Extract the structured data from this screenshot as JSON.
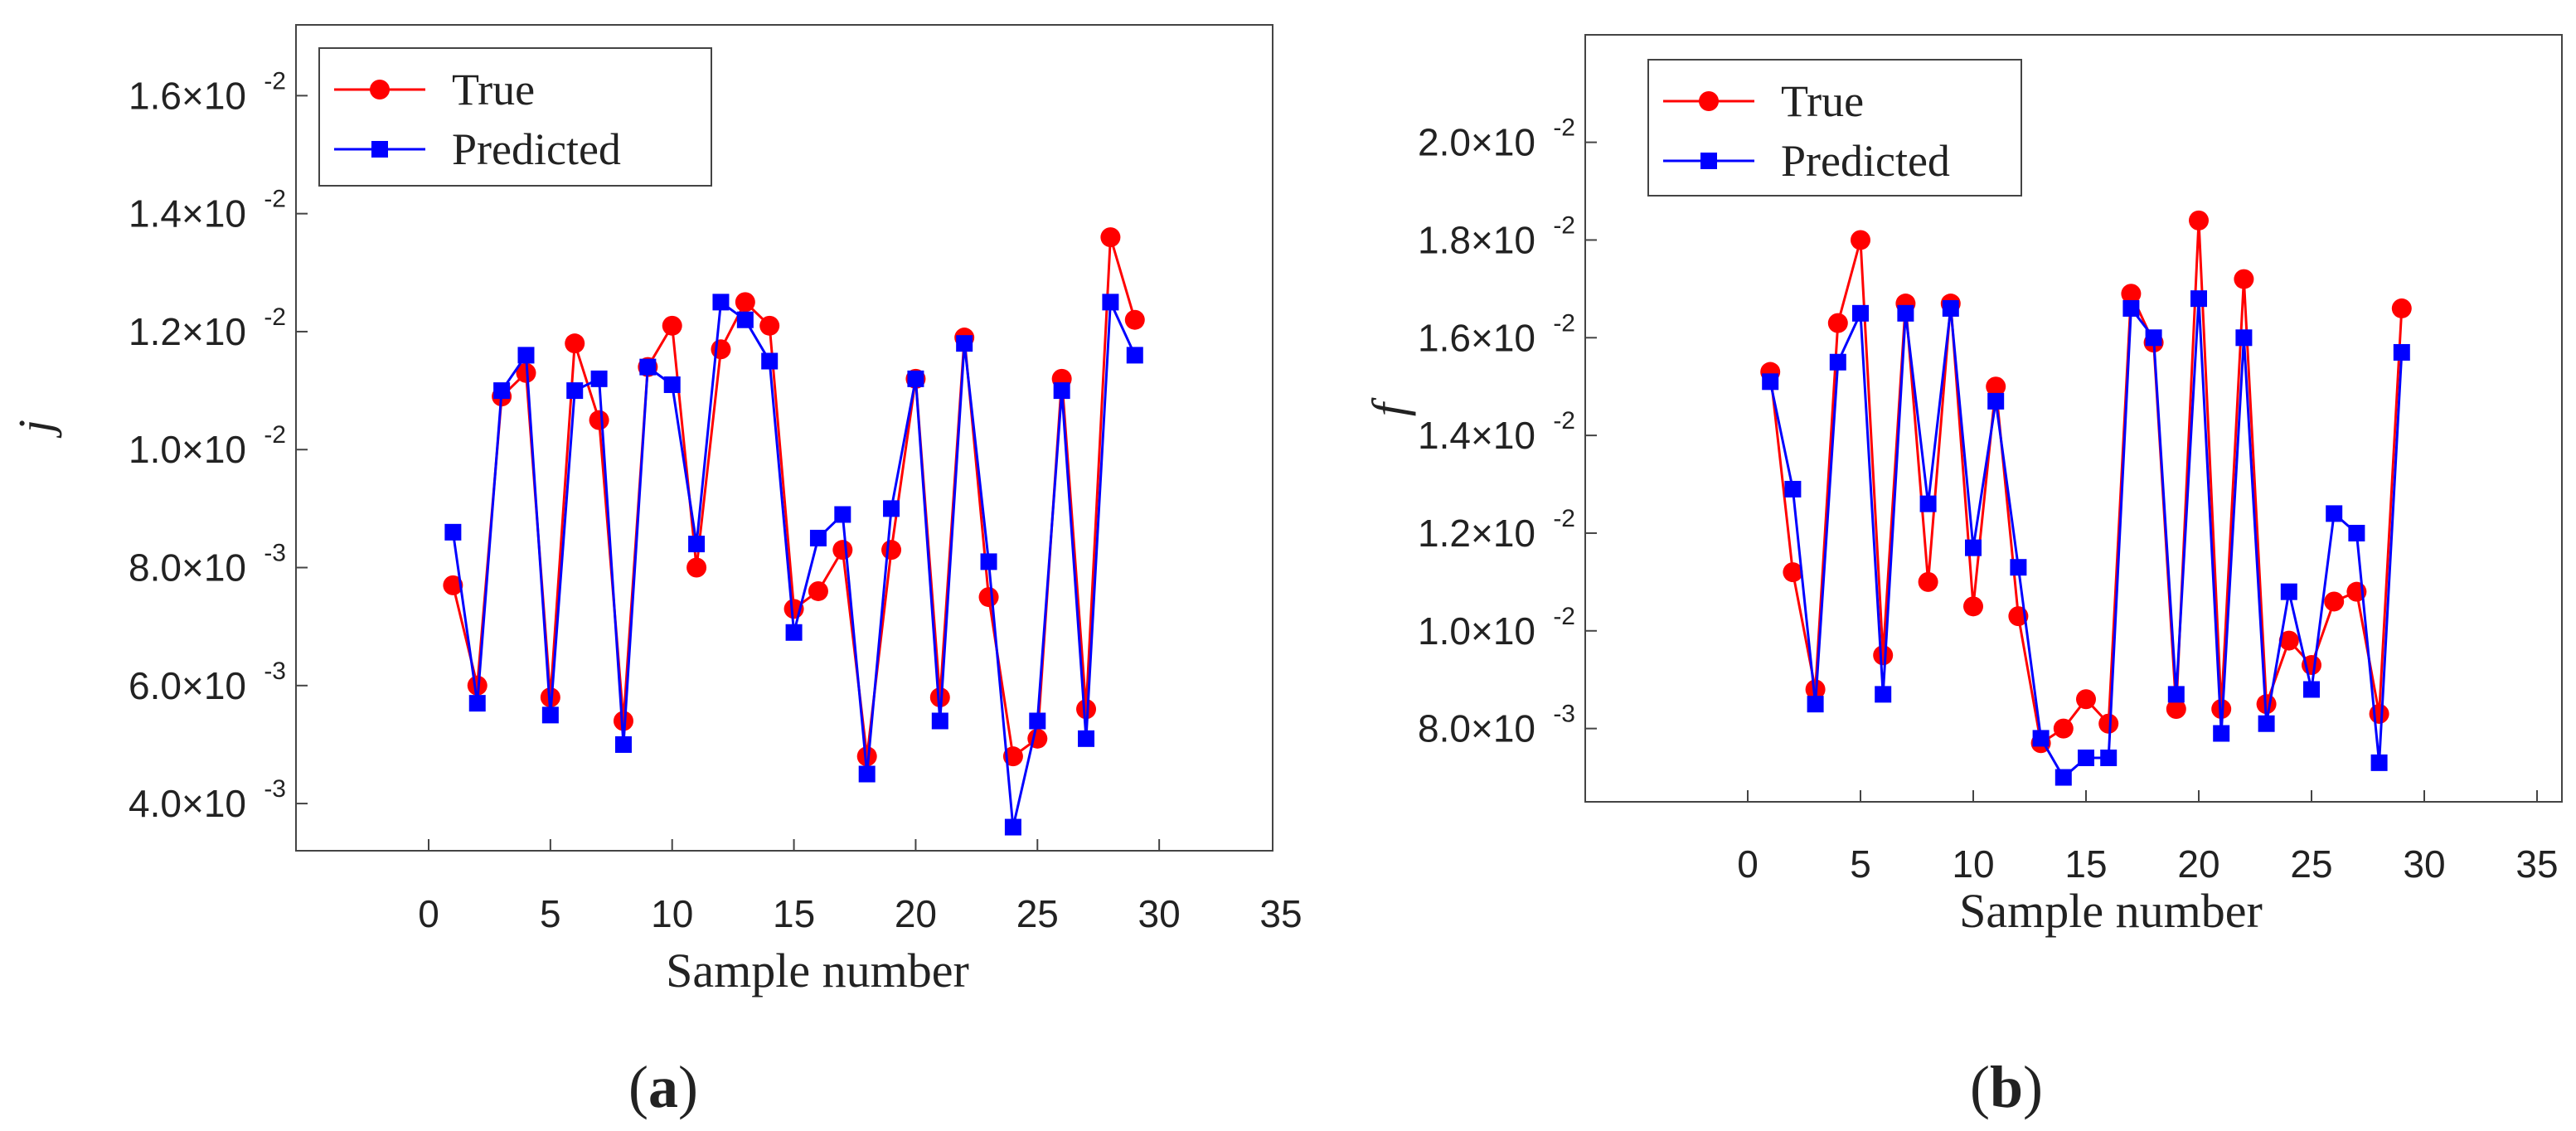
{
  "charts": [
    {
      "id": "a",
      "panel_label_open": "(",
      "panel_label_letter": "a",
      "panel_label_close": ")",
      "ylabel": "j",
      "xlabel": "Sample number",
      "legend": [
        "True",
        "Predicted"
      ],
      "ytick_labels": [
        {
          "value": 0.004,
          "mant": "4.0×10",
          "exp": "-3"
        },
        {
          "value": 0.006,
          "mant": "6.0×10",
          "exp": "-3"
        },
        {
          "value": 0.008,
          "mant": "8.0×10",
          "exp": "-3"
        },
        {
          "value": 0.01,
          "mant": "1.0×10",
          "exp": "-2"
        },
        {
          "value": 0.012,
          "mant": "1.2×10",
          "exp": "-2"
        },
        {
          "value": 0.014,
          "mant": "1.4×10",
          "exp": "-2"
        },
        {
          "value": 0.016,
          "mant": "1.6×10",
          "exp": "-2"
        }
      ],
      "xticks": [
        "0",
        "5",
        "10",
        "15",
        "20",
        "25",
        "30",
        "35"
      ]
    },
    {
      "id": "b",
      "panel_label_open": "(",
      "panel_label_letter": "b",
      "panel_label_close": ")",
      "ylabel": "f",
      "xlabel": "Sample number",
      "legend": [
        "True",
        "Predicted"
      ],
      "ytick_labels": [
        {
          "value": 0.008,
          "mant": "8.0×10",
          "exp": "-3"
        },
        {
          "value": 0.01,
          "mant": "1.0×10",
          "exp": "-2"
        },
        {
          "value": 0.012,
          "mant": "1.2×10",
          "exp": "-2"
        },
        {
          "value": 0.014,
          "mant": "1.4×10",
          "exp": "-2"
        },
        {
          "value": 0.016,
          "mant": "1.6×10",
          "exp": "-2"
        },
        {
          "value": 0.018,
          "mant": "1.8×10",
          "exp": "-2"
        },
        {
          "value": 0.02,
          "mant": "2.0×10",
          "exp": "-2"
        }
      ],
      "xticks": [
        "0",
        "5",
        "10",
        "15",
        "20",
        "25",
        "30",
        "35"
      ]
    }
  ],
  "chart_data": [
    {
      "type": "line",
      "title": "",
      "xlabel": "Sample number",
      "ylabel": "j",
      "xlim": [
        -5,
        35
      ],
      "ylim": [
        0.0032,
        0.0172
      ],
      "x": [
        1,
        2,
        3,
        4,
        5,
        6,
        7,
        8,
        9,
        10,
        11,
        12,
        13,
        14,
        15,
        16,
        17,
        18,
        19,
        20,
        21,
        22,
        23,
        24,
        25,
        26,
        27,
        28,
        29
      ],
      "series": [
        {
          "name": "True",
          "color": "#ff0000",
          "marker": "circle",
          "values": [
            0.0077,
            0.006,
            0.0109,
            0.0113,
            0.0058,
            0.0118,
            0.0105,
            0.0054,
            0.0114,
            0.0121,
            0.008,
            0.0117,
            0.0125,
            0.0121,
            0.0073,
            0.0076,
            0.0083,
            0.0048,
            0.0083,
            0.0112,
            0.0058,
            0.0119,
            0.0075,
            0.0048,
            0.0051,
            0.0112,
            0.0056,
            0.0136,
            0.0122
          ]
        },
        {
          "name": "Predicted",
          "color": "#0000ff",
          "marker": "square",
          "values": [
            0.0086,
            0.0057,
            0.011,
            0.0116,
            0.0055,
            0.011,
            0.0112,
            0.005,
            0.0114,
            0.0111,
            0.0084,
            0.0125,
            0.0122,
            0.0115,
            0.0069,
            0.0085,
            0.0089,
            0.0045,
            0.009,
            0.0112,
            0.0054,
            0.0118,
            0.0081,
            0.0036,
            0.0054,
            0.011,
            0.0051,
            0.0125,
            0.0116
          ]
        }
      ],
      "legend_position": "top-left"
    },
    {
      "type": "line",
      "title": "",
      "xlabel": "Sample number",
      "ylabel": "f",
      "xlim": [
        -5,
        35
      ],
      "ylim": [
        0.0065,
        0.0222
      ],
      "x": [
        1,
        2,
        3,
        4,
        5,
        6,
        7,
        8,
        9,
        10,
        11,
        12,
        13,
        14,
        15,
        16,
        17,
        18,
        19,
        20,
        21,
        22,
        23,
        24,
        25,
        26,
        27,
        28,
        29
      ],
      "series": [
        {
          "name": "True",
          "color": "#ff0000",
          "marker": "circle",
          "values": [
            0.0153,
            0.0112,
            0.0088,
            0.0163,
            0.018,
            0.0095,
            0.0167,
            0.011,
            0.0167,
            0.0105,
            0.015,
            0.0103,
            0.0077,
            0.008,
            0.0086,
            0.0081,
            0.0169,
            0.0159,
            0.0084,
            0.0184,
            0.0084,
            0.0172,
            0.0085,
            0.0098,
            0.0093,
            0.0106,
            0.0108,
            0.0083,
            0.0166
          ]
        },
        {
          "name": "Predicted",
          "color": "#0000ff",
          "marker": "square",
          "values": [
            0.0151,
            0.0129,
            0.0085,
            0.0155,
            0.0165,
            0.0087,
            0.0165,
            0.0126,
            0.0166,
            0.0117,
            0.0147,
            0.0113,
            0.0078,
            0.007,
            0.0074,
            0.0074,
            0.0166,
            0.016,
            0.0087,
            0.0168,
            0.0079,
            0.016,
            0.0081,
            0.0108,
            0.0088,
            0.0124,
            0.012,
            0.0073,
            0.0157
          ]
        }
      ],
      "legend_position": "top-left"
    }
  ]
}
